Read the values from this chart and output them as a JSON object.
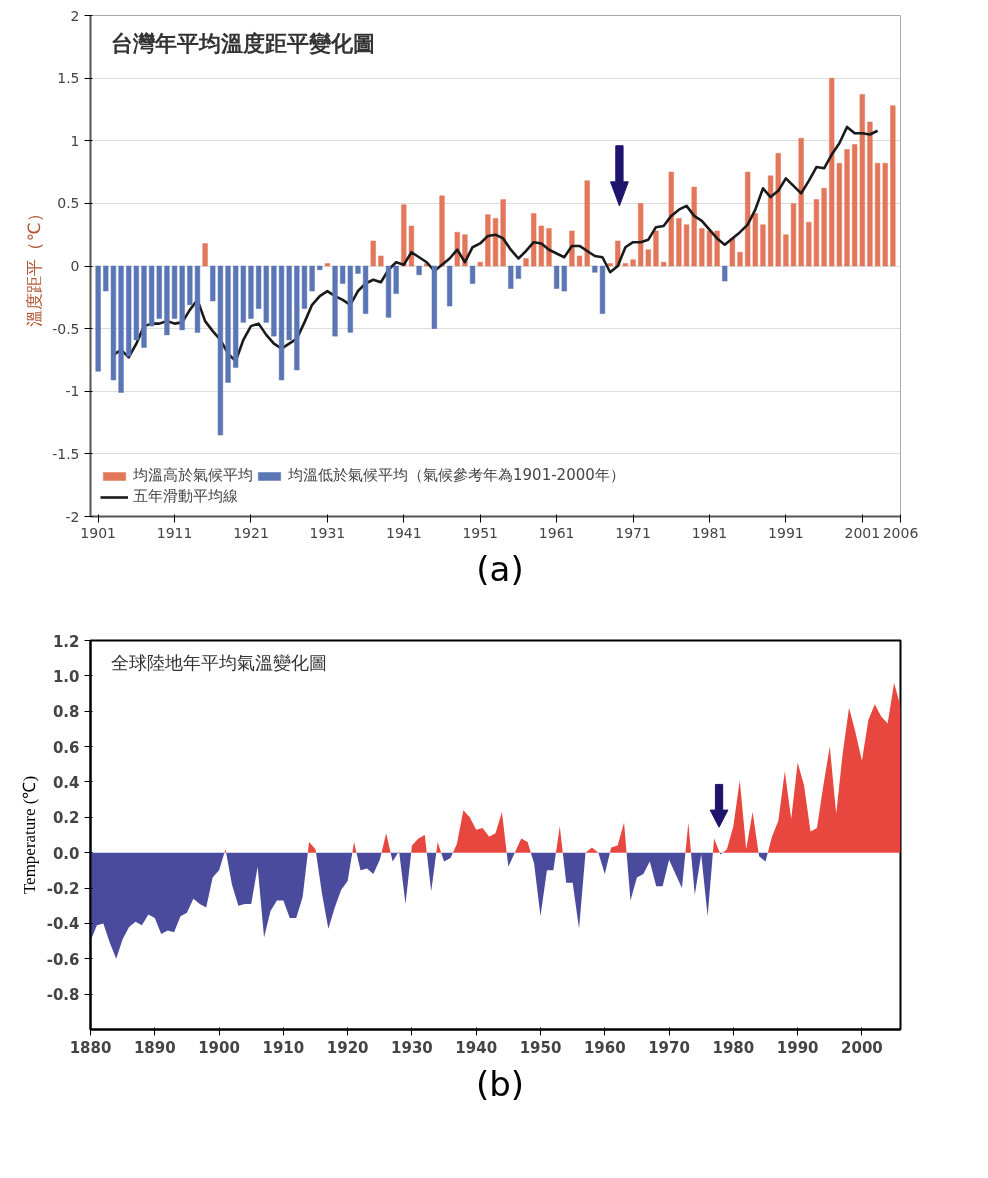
{
  "chart_data": [
    {
      "type": "bar",
      "title": "台灣年平均溫度距平變化圖",
      "ylabel": "溫度距平（℃）",
      "annotations": [
        "(a)"
      ],
      "xlim": [
        1900,
        2006
      ],
      "xticks": [
        1901,
        1911,
        1921,
        1931,
        1941,
        1951,
        1961,
        1971,
        1981,
        1991,
        2001,
        2006
      ],
      "ylim": [
        -2,
        2
      ],
      "yticks": [
        -2,
        -1.5,
        -1,
        -0.5,
        0,
        0.5,
        1,
        1.5,
        2
      ],
      "grid": "y",
      "legend": "bottom left",
      "x": [
        1901,
        1902,
        1903,
        1904,
        1905,
        1906,
        1907,
        1908,
        1909,
        1910,
        1911,
        1912,
        1913,
        1914,
        1915,
        1916,
        1917,
        1918,
        1919,
        1920,
        1921,
        1922,
        1923,
        1924,
        1925,
        1926,
        1927,
        1928,
        1929,
        1930,
        1931,
        1932,
        1933,
        1934,
        1935,
        1936,
        1937,
        1938,
        1939,
        1940,
        1941,
        1942,
        1943,
        1944,
        1945,
        1946,
        1947,
        1948,
        1949,
        1950,
        1951,
        1952,
        1953,
        1954,
        1955,
        1956,
        1957,
        1958,
        1959,
        1960,
        1961,
        1962,
        1963,
        1964,
        1965,
        1966,
        1967,
        1968,
        1969,
        1970,
        1971,
        1972,
        1973,
        1974,
        1975,
        1976,
        1977,
        1978,
        1979,
        1980,
        1981,
        1982,
        1983,
        1984,
        1985,
        1986,
        1987,
        1988,
        1989,
        1990,
        1991,
        1992,
        1993,
        1994,
        1995,
        1996,
        1997,
        1998,
        1999,
        2000,
        2001,
        2002,
        2003,
        2004,
        2005
      ],
      "series": [
        {
          "name": "均溫高於氣候平均",
          "color": "#e2775b",
          "values": [
            null,
            null,
            null,
            null,
            null,
            null,
            null,
            null,
            null,
            null,
            null,
            null,
            null,
            null,
            0.18,
            null,
            null,
            null,
            null,
            null,
            null,
            null,
            null,
            null,
            null,
            null,
            null,
            null,
            null,
            null,
            0.02,
            null,
            null,
            null,
            null,
            null,
            0.2,
            0.08,
            null,
            null,
            0.49,
            0.32,
            null,
            0.02,
            null,
            0.56,
            null,
            0.27,
            0.25,
            null,
            0.03,
            0.41,
            0.38,
            0.53,
            null,
            null,
            0.06,
            0.42,
            0.32,
            0.3,
            null,
            null,
            0.28,
            0.08,
            0.68,
            null,
            null,
            0.02,
            0.2,
            0.02,
            0.05,
            0.5,
            0.13,
            0.28,
            0.03,
            0.75,
            0.38,
            0.33,
            0.63,
            0.3,
            0.28,
            0.28,
            null,
            0.22,
            0.11,
            0.75,
            0.42,
            0.33,
            0.72,
            0.9,
            0.25,
            0.5,
            1.02,
            0.35,
            0.53,
            0.62,
            1.5,
            0.82,
            0.93,
            0.97,
            1.37,
            1.15,
            0.82,
            0.82,
            1.28
          ]
        },
        {
          "name": "五年滑動平均線",
          "type": "line",
          "color": "#1a1a1a",
          "x": [
            1903,
            1904,
            1905,
            1906,
            1907,
            1908,
            1909,
            1910,
            1911,
            1912,
            1913,
            1914,
            1915,
            1916,
            1917,
            1918,
            1919,
            1920,
            1921,
            1922,
            1923,
            1924,
            1925,
            1926,
            1927,
            1928,
            1929,
            1930,
            1931,
            1932,
            1933,
            1934,
            1935,
            1936,
            1937,
            1938,
            1939,
            1940,
            1941,
            1942,
            1943,
            1944,
            1945,
            1946,
            1947,
            1948,
            1949,
            1950,
            1951,
            1952,
            1953,
            1954,
            1955,
            1956,
            1957,
            1958,
            1959,
            1960,
            1961,
            1962,
            1963,
            1964,
            1965,
            1966,
            1967,
            1968,
            1969,
            1970,
            1971,
            1972,
            1973,
            1974,
            1975,
            1976,
            1977,
            1978,
            1979,
            1980,
            1981,
            1982,
            1983,
            1984,
            1985,
            1986,
            1987,
            1988,
            1989,
            1990,
            1991,
            1992,
            1993,
            1994,
            1995,
            1996,
            1997,
            1998,
            1999,
            2000,
            2001,
            2002,
            2003
          ],
          "values": [
            -0.71,
            -0.67,
            -0.73,
            -0.62,
            -0.48,
            -0.46,
            -0.46,
            -0.44,
            -0.46,
            -0.45,
            -0.35,
            -0.27,
            -0.44,
            -0.52,
            -0.59,
            -0.7,
            -0.76,
            -0.59,
            -0.48,
            -0.46,
            -0.55,
            -0.62,
            -0.66,
            -0.62,
            -0.58,
            -0.45,
            -0.31,
            -0.24,
            -0.2,
            -0.24,
            -0.27,
            -0.31,
            -0.2,
            -0.14,
            -0.11,
            -0.13,
            -0.03,
            0.03,
            0.01,
            0.11,
            0.07,
            0.03,
            -0.04,
            0.01,
            0.06,
            0.13,
            0.03,
            0.15,
            0.18,
            0.24,
            0.25,
            0.22,
            0.13,
            0.06,
            0.12,
            0.19,
            0.18,
            0.13,
            0.1,
            0.07,
            0.16,
            0.16,
            0.12,
            0.08,
            0.07,
            -0.05,
            0.0,
            0.15,
            0.19,
            0.19,
            0.21,
            0.31,
            0.32,
            0.4,
            0.45,
            0.48,
            0.4,
            0.36,
            0.29,
            0.22,
            0.17,
            0.22,
            0.27,
            0.33,
            0.45,
            0.62,
            0.55,
            0.6,
            0.7,
            0.64,
            0.58,
            0.68,
            0.79,
            0.78,
            0.89,
            0.98,
            1.11,
            1.06,
            1.06,
            1.05,
            1.08
          ]
        },
        {
          "name": "均溫低於氣候平均（氣候參考年為1901-2000年）",
          "color": "#5b76b5",
          "values": [
            -0.84,
            -0.2,
            -0.91,
            -1.01,
            -0.72,
            -0.59,
            -0.65,
            -0.48,
            -0.42,
            -0.55,
            -0.42,
            -0.51,
            -0.31,
            -0.53,
            null,
            -0.28,
            -1.35,
            -0.93,
            -0.81,
            -0.45,
            -0.42,
            -0.34,
            -0.45,
            -0.56,
            -0.91,
            -0.59,
            -0.83,
            -0.34,
            -0.2,
            -0.03,
            null,
            -0.56,
            -0.14,
            -0.53,
            -0.06,
            -0.38,
            null,
            null,
            -0.41,
            -0.22,
            null,
            null,
            -0.07,
            null,
            -0.5,
            null,
            -0.32,
            null,
            null,
            -0.14,
            null,
            null,
            null,
            null,
            -0.18,
            -0.1,
            null,
            null,
            null,
            null,
            -0.18,
            -0.2,
            null,
            null,
            null,
            -0.05,
            -0.38,
            null,
            null,
            null,
            null,
            null,
            null,
            null,
            null,
            null,
            null,
            null,
            null,
            null,
            null,
            null,
            -0.12,
            null,
            null,
            null,
            null,
            null,
            null,
            null,
            null,
            null,
            null,
            null,
            null,
            null,
            null,
            null,
            null,
            null,
            null,
            null,
            null,
            null,
            null
          ]
        }
      ]
    },
    {
      "type": "area",
      "title": "全球陸地年平均氣溫變化圖",
      "ylabel": "Temperature (℃)",
      "annotations": [
        "(b)"
      ],
      "xlim": [
        1880,
        2006
      ],
      "xticks": [
        1880,
        1890,
        1900,
        1910,
        1920,
        1930,
        1940,
        1950,
        1960,
        1970,
        1980,
        1990,
        2000
      ],
      "ylim": [
        -1.0,
        1.2
      ],
      "yticks": [
        -0.8,
        -0.6,
        -0.4,
        -0.2,
        {
          "value": 0,
          "label": "0.0"
        },
        0.2,
        0.4,
        0.6,
        0.8,
        {
          "value": 1,
          "label": "1.0"
        },
        1.2
      ],
      "x": [
        1880,
        1881,
        1882,
        1883,
        1884,
        1885,
        1886,
        1887,
        1888,
        1889,
        1890,
        1891,
        1892,
        1893,
        1894,
        1895,
        1896,
        1897,
        1898,
        1899,
        1900,
        1901,
        1902,
        1903,
        1904,
        1905,
        1906,
        1907,
        1908,
        1909,
        1910,
        1911,
        1912,
        1913,
        1914,
        1915,
        1916,
        1917,
        1918,
        1919,
        1920,
        1921,
        1922,
        1923,
        1924,
        1925,
        1926,
        1927,
        1928,
        1929,
        1930,
        1931,
        1932,
        1933,
        1934,
        1935,
        1936,
        1937,
        1938,
        1939,
        1940,
        1941,
        1942,
        1943,
        1944,
        1945,
        1946,
        1947,
        1948,
        1949,
        1950,
        1951,
        1952,
        1953,
        1954,
        1955,
        1956,
        1957,
        1958,
        1959,
        1960,
        1961,
        1962,
        1963,
        1964,
        1965,
        1966,
        1967,
        1968,
        1969,
        1970,
        1971,
        1972,
        1973,
        1974,
        1975,
        1976,
        1977,
        1978,
        1979,
        1980,
        1981,
        1982,
        1983,
        1984,
        1985,
        1986,
        1987,
        1988,
        1989,
        1990,
        1991,
        1992,
        1993,
        1994,
        1995,
        1996,
        1997,
        1998,
        1999,
        2000,
        2001,
        2002,
        2003,
        2004,
        2005,
        2006
      ],
      "series": [
        {
          "color": "#4b4b9e",
          "values": [
            -0.5,
            -0.41,
            -0.4,
            -0.51,
            -0.6,
            -0.49,
            -0.42,
            -0.39,
            -0.41,
            -0.35,
            -0.37,
            -0.46,
            -0.44,
            -0.45,
            -0.36,
            -0.34,
            -0.26,
            -0.29,
            -0.31,
            -0.14,
            -0.1,
            null,
            -0.18,
            -0.3,
            -0.29,
            -0.29,
            -0.08,
            -0.48,
            -0.33,
            -0.27,
            -0.27,
            -0.37,
            -0.37,
            -0.25,
            null,
            null,
            -0.23,
            -0.43,
            -0.31,
            -0.21,
            -0.16,
            null,
            -0.1,
            -0.09,
            -0.12,
            -0.04,
            null,
            -0.05,
            null,
            -0.29,
            null,
            null,
            null,
            -0.22,
            null,
            -0.05,
            -0.03,
            null,
            null,
            null,
            null,
            null,
            null,
            null,
            null,
            -0.08,
            null,
            null,
            null,
            -0.06,
            -0.36,
            -0.1,
            -0.1,
            null,
            -0.17,
            -0.17,
            -0.43,
            null,
            null,
            null,
            -0.12,
            null,
            null,
            null,
            -0.27,
            -0.14,
            -0.12,
            -0.05,
            -0.19,
            -0.19,
            -0.04,
            -0.12,
            -0.2,
            null,
            -0.24,
            -0.01,
            -0.36,
            null,
            -0.01,
            null,
            null,
            null,
            null,
            null,
            -0.02,
            -0.05,
            null,
            null,
            null,
            null,
            null,
            null,
            null,
            null,
            null,
            null,
            null,
            null,
            null,
            null,
            null,
            null,
            null,
            null,
            null,
            null,
            null
          ]
        },
        {
          "color": "#e8473f",
          "values": [
            null,
            null,
            null,
            null,
            null,
            null,
            null,
            null,
            null,
            null,
            null,
            null,
            null,
            null,
            null,
            null,
            null,
            null,
            null,
            null,
            null,
            0.02,
            null,
            null,
            null,
            null,
            null,
            null,
            null,
            null,
            null,
            null,
            null,
            null,
            0.06,
            0.02,
            null,
            null,
            null,
            null,
            null,
            0.06,
            null,
            null,
            null,
            null,
            0.11,
            null,
            0.01,
            null,
            0.04,
            0.08,
            0.1,
            null,
            0.06,
            null,
            null,
            0.05,
            0.24,
            0.2,
            0.13,
            0.14,
            0.09,
            0.11,
            0.23,
            null,
            0.0,
            0.08,
            0.06,
            null,
            null,
            null,
            null,
            0.15,
            null,
            null,
            null,
            0.0,
            0.03,
            0.0,
            null,
            0.03,
            0.04,
            0.17,
            null,
            null,
            null,
            null,
            null,
            null,
            null,
            null,
            null,
            0.17,
            null,
            null,
            null,
            0.08,
            null,
            0.02,
            0.15,
            0.41,
            0.02,
            0.23,
            null,
            null,
            0.09,
            0.18,
            0.46,
            0.19,
            0.51,
            0.38,
            0.12,
            0.14,
            0.38,
            0.6,
            0.22,
            0.56,
            0.82,
            0.68,
            0.52,
            0.75,
            0.84,
            0.77,
            0.73,
            0.96,
            0.83
          ]
        }
      ]
    }
  ]
}
